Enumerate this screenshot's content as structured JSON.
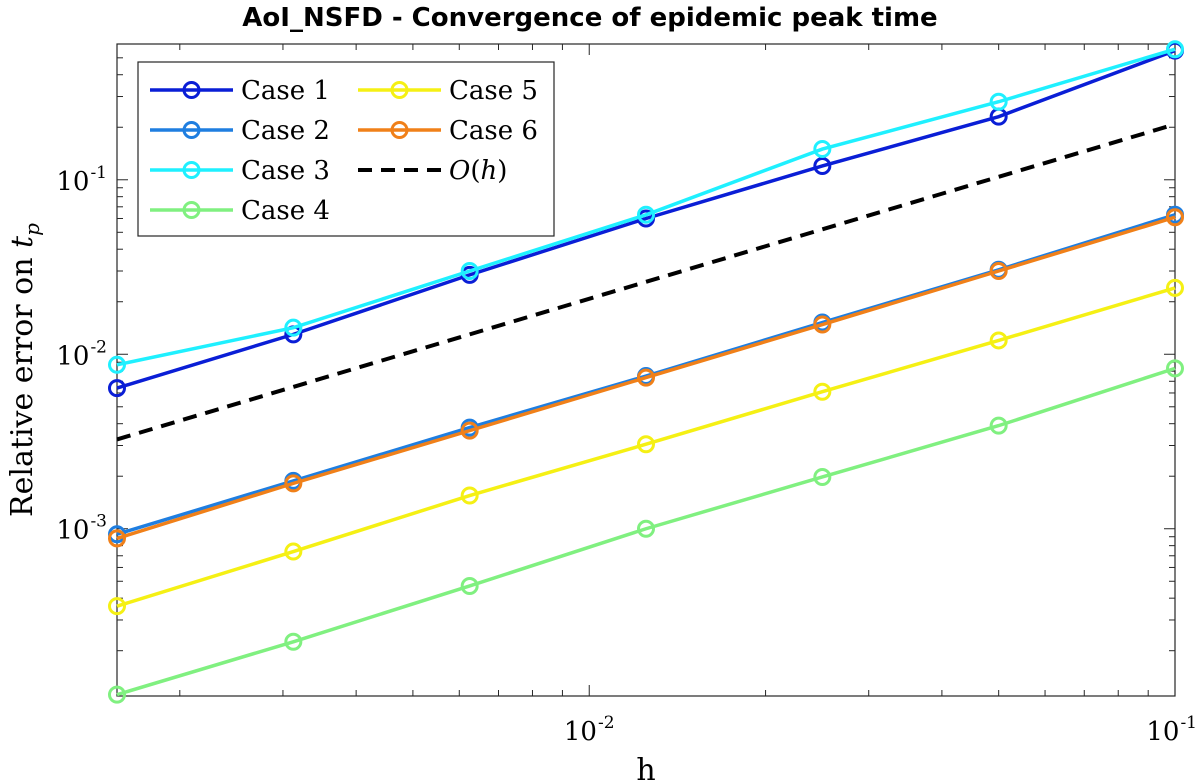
{
  "chart_data": {
    "type": "line",
    "title": "AoI_NSFD - Convergence of epidemic peak time",
    "xlabel": "h",
    "ylabel": "Relative error on t_p",
    "xscale": "log",
    "yscale": "log",
    "xlim": [
      0.0015625,
      0.1
    ],
    "ylim": [
      0.00011,
      0.6
    ],
    "x": [
      0.0015625,
      0.003125,
      0.00625,
      0.0125,
      0.025,
      0.05,
      0.1
    ],
    "xticks": [
      {
        "value": 0.01,
        "base": "10",
        "exp": "-2"
      },
      {
        "value": 0.1,
        "base": "10",
        "exp": "-1"
      }
    ],
    "yticks": [
      {
        "value": 0.001,
        "base": "10",
        "exp": "-3"
      },
      {
        "value": 0.01,
        "base": "10",
        "exp": "-2"
      },
      {
        "value": 0.1,
        "base": "10",
        "exp": "-1"
      }
    ],
    "grid": false,
    "legend_position": "top-left",
    "series": [
      {
        "name": "Case 1",
        "color": "#0a1ed6",
        "marker": "circle",
        "values": [
          0.0064,
          0.013,
          0.0285,
          0.06,
          0.12,
          0.23,
          0.55
        ]
      },
      {
        "name": "Case 2",
        "color": "#1f7ee0",
        "marker": "circle",
        "values": [
          0.00093,
          0.00188,
          0.0038,
          0.0075,
          0.0152,
          0.0305,
          0.063
        ]
      },
      {
        "name": "Case 3",
        "color": "#1ff0ff",
        "marker": "circle",
        "values": [
          0.0087,
          0.0142,
          0.03,
          0.063,
          0.15,
          0.28,
          0.56
        ]
      },
      {
        "name": "Case 4",
        "color": "#80f080",
        "marker": "circle",
        "values": [
          0.000112,
          0.000225,
          0.00047,
          0.001,
          0.00198,
          0.0039,
          0.0083
        ]
      },
      {
        "name": "Case 5",
        "color": "#f5f014",
        "marker": "circle",
        "values": [
          0.00036,
          0.00074,
          0.00155,
          0.00305,
          0.0061,
          0.012,
          0.024
        ]
      },
      {
        "name": "Case 6",
        "color": "#f08019",
        "marker": "circle",
        "values": [
          0.00088,
          0.00182,
          0.00365,
          0.00735,
          0.0148,
          0.03,
          0.061
        ]
      },
      {
        "name": "O(h)",
        "color": "#000000",
        "dashed": true,
        "marker": "none",
        "values": [
          0.00325,
          0.0065,
          0.013,
          0.026,
          0.052,
          0.104,
          0.208
        ]
      }
    ],
    "legend_columns": [
      [
        "Case 1",
        "Case 2",
        "Case 3",
        "Case 4"
      ],
      [
        "Case 5",
        "Case 6",
        "O(h)"
      ]
    ]
  }
}
